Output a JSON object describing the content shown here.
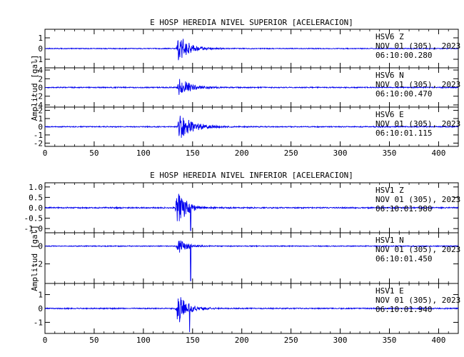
{
  "chart_data": [
    {
      "type": "line",
      "title": "E HOSP HEREDIA NIVEL SUPERIOR [ACELERACION]",
      "ylabel": "Amplitud [gal]",
      "xlim": [
        0,
        420
      ],
      "xticks": [
        0,
        50,
        100,
        150,
        200,
        250,
        300,
        350,
        400
      ],
      "panels": [
        {
          "station": "HSV6",
          "component": "Z",
          "date": "NOV 01 (305), 2023",
          "time": "06:10:00.280",
          "ylim": [
            -1.8,
            1.8
          ],
          "yticks": [
            -1,
            0,
            1
          ],
          "ytick_labels": [
            "-1",
            "0",
            "1"
          ],
          "onset": 133,
          "peak": 1.4,
          "noise": 0.04,
          "decay": 10,
          "spikes": []
        },
        {
          "station": "HSV6",
          "component": "N",
          "date": "NOV 01 (305), 2023",
          "time": "06:10:00.470",
          "ylim": [
            -4.5,
            4.5
          ],
          "yticks": [
            -4,
            -2,
            0,
            2,
            4
          ],
          "ytick_labels": [
            "-4",
            "-2",
            "0",
            "2",
            "4"
          ],
          "onset": 134,
          "peak": 2.2,
          "noise": 0.12,
          "decay": 11,
          "spikes": []
        },
        {
          "station": "HSV6",
          "component": "E",
          "date": "NOV 01 (305), 2023",
          "time": "06:10:01.115",
          "ylim": [
            -2.4,
            2.4
          ],
          "yticks": [
            -2,
            -1,
            0,
            1,
            2
          ],
          "ytick_labels": [
            "-2",
            "-1",
            "0",
            "1",
            "2"
          ],
          "onset": 134,
          "peak": 1.5,
          "noise": 0.06,
          "decay": 14,
          "spikes": []
        }
      ]
    },
    {
      "type": "line",
      "title": "E HOSP HEREDIA NIVEL INFERIOR [ACELERACION]",
      "ylabel": "Amplitud [gal]",
      "xlim": [
        0,
        420
      ],
      "xticks": [
        0,
        50,
        100,
        150,
        200,
        250,
        300,
        350,
        400
      ],
      "panels": [
        {
          "station": "HSV1",
          "component": "Z",
          "date": "NOV 01 (305), 2023",
          "time": "06:10:01.980",
          "ylim": [
            -1.2,
            1.2
          ],
          "yticks": [
            -1.0,
            -0.5,
            0.0,
            0.5,
            1.0
          ],
          "ytick_labels": [
            "-1.0",
            "-0.5",
            "0.0",
            "0.5",
            "1.0"
          ],
          "onset": 132,
          "peak": 1.0,
          "noise": 0.03,
          "decay": 8,
          "spikes": [
            {
              "x": 148,
              "y": -1.1
            }
          ]
        },
        {
          "station": "HSV1",
          "component": "N",
          "date": "NOV 01 (305), 2023",
          "time": "06:10:01.450",
          "ylim": [
            -4.2,
            1.5
          ],
          "yticks": [
            -2,
            0
          ],
          "ytick_labels": [
            "-2",
            "0"
          ],
          "onset": 133,
          "peak": 0.8,
          "noise": 0.05,
          "decay": 8,
          "spikes": [
            {
              "x": 148,
              "y": -3.9
            }
          ]
        },
        {
          "station": "HSV1",
          "component": "E",
          "date": "NOV 01 (305), 2023",
          "time": "06:10:01.940",
          "ylim": [
            -1.8,
            1.8
          ],
          "yticks": [
            -1,
            0,
            1
          ],
          "ytick_labels": [
            "-1",
            "0",
            "1"
          ],
          "onset": 132,
          "peak": 1.2,
          "noise": 0.04,
          "decay": 9,
          "spikes": [
            {
              "x": 147,
              "y": -1.7
            }
          ]
        }
      ]
    }
  ]
}
